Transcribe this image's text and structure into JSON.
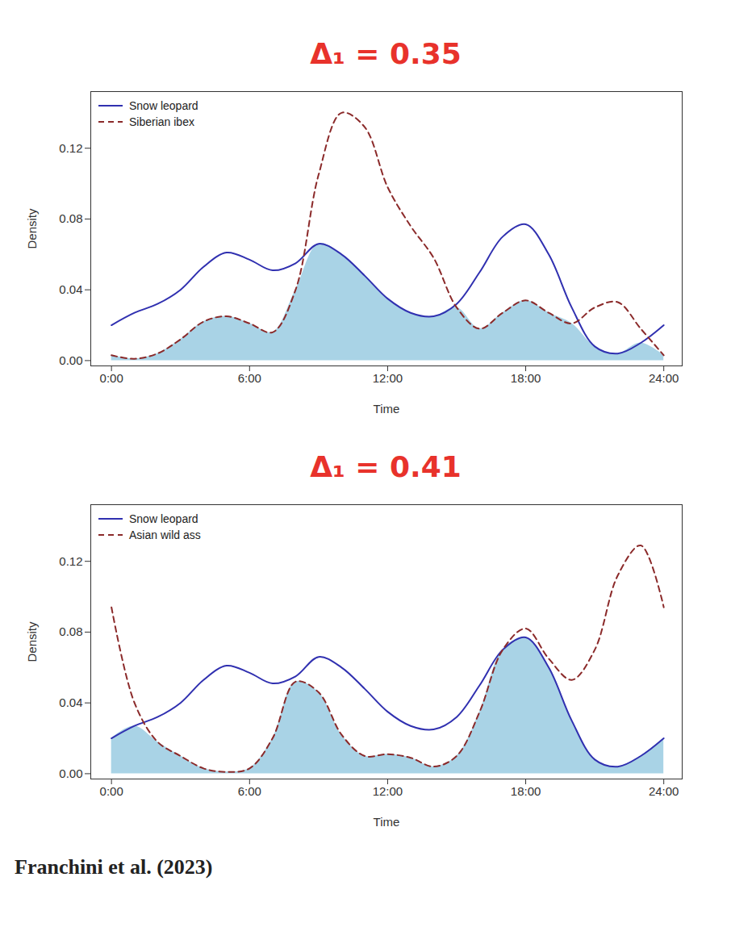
{
  "chart_data": [
    {
      "type": "line",
      "title": "Δ₁ = 0.35",
      "x_label": "Time",
      "y_label": "Density",
      "x": [
        0,
        1,
        2,
        3,
        4,
        5,
        6,
        7,
        8,
        9,
        10,
        11,
        12,
        13,
        14,
        15,
        16,
        17,
        18,
        19,
        20,
        21,
        22,
        23,
        24
      ],
      "series": [
        {
          "name": "Snow leopard",
          "color": "#3030b0",
          "line_style": "solid",
          "values": [
            0.02,
            0.027,
            0.032,
            0.04,
            0.053,
            0.061,
            0.057,
            0.051,
            0.055,
            0.066,
            0.06,
            0.048,
            0.035,
            0.027,
            0.025,
            0.032,
            0.05,
            0.07,
            0.077,
            0.06,
            0.03,
            0.008,
            0.004,
            0.01,
            0.02
          ]
        },
        {
          "name": "Siberian ibex",
          "color": "#8b2a2a",
          "line_style": "dashed",
          "values": [
            0.003,
            0.001,
            0.004,
            0.012,
            0.022,
            0.025,
            0.021,
            0.016,
            0.04,
            0.105,
            0.14,
            0.132,
            0.098,
            0.076,
            0.058,
            0.03,
            0.018,
            0.027,
            0.034,
            0.027,
            0.021,
            0.03,
            0.033,
            0.018,
            0.003
          ]
        }
      ],
      "xlim": [
        -0.9,
        24.8
      ],
      "xticks": [
        {
          "value": 0,
          "label": "0:00"
        },
        {
          "value": 6,
          "label": "6:00"
        },
        {
          "value": 12,
          "label": "12:00"
        },
        {
          "value": 18,
          "label": "18:00"
        },
        {
          "value": 24,
          "label": "24:00"
        }
      ],
      "ylim": [
        -0.003,
        0.152
      ],
      "yticks": [
        {
          "value": 0,
          "label": "0.00"
        },
        {
          "value": 0.04,
          "label": "0.04"
        },
        {
          "value": 0.08,
          "label": "0.08"
        },
        {
          "value": 0.12,
          "label": "0.12"
        }
      ],
      "legend": "top-left"
    },
    {
      "type": "line",
      "title": "Δ₁ = 0.41",
      "x_label": "Time",
      "y_label": "Density",
      "x": [
        0,
        1,
        2,
        3,
        4,
        5,
        6,
        7,
        8,
        9,
        10,
        11,
        12,
        13,
        14,
        15,
        16,
        17,
        18,
        19,
        20,
        21,
        22,
        23,
        24
      ],
      "series": [
        {
          "name": "Snow leopard",
          "color": "#3030b0",
          "line_style": "solid",
          "values": [
            0.02,
            0.027,
            0.032,
            0.04,
            0.053,
            0.061,
            0.057,
            0.051,
            0.055,
            0.066,
            0.06,
            0.048,
            0.035,
            0.027,
            0.025,
            0.032,
            0.05,
            0.07,
            0.077,
            0.06,
            0.03,
            0.008,
            0.004,
            0.01,
            0.02
          ]
        },
        {
          "name": "Asian wild ass",
          "color": "#8b2a2a",
          "line_style": "dashed",
          "values": [
            0.094,
            0.04,
            0.018,
            0.01,
            0.003,
            0.001,
            0.003,
            0.02,
            0.052,
            0.046,
            0.022,
            0.01,
            0.011,
            0.009,
            0.004,
            0.01,
            0.035,
            0.07,
            0.082,
            0.065,
            0.053,
            0.07,
            0.112,
            0.129,
            0.094
          ]
        }
      ],
      "xlim": [
        -0.9,
        24.8
      ],
      "xticks": [
        {
          "value": 0,
          "label": "0:00"
        },
        {
          "value": 6,
          "label": "6:00"
        },
        {
          "value": 12,
          "label": "12:00"
        },
        {
          "value": 18,
          "label": "18:00"
        },
        {
          "value": 24,
          "label": "24:00"
        }
      ],
      "ylim": [
        -0.003,
        0.152
      ],
      "yticks": [
        {
          "value": 0,
          "label": "0.00"
        },
        {
          "value": 0.04,
          "label": "0.04"
        },
        {
          "value": 0.08,
          "label": "0.08"
        },
        {
          "value": 0.12,
          "label": "0.12"
        }
      ],
      "legend": "top-left"
    }
  ],
  "caption": "Franchini et al. (2023)"
}
